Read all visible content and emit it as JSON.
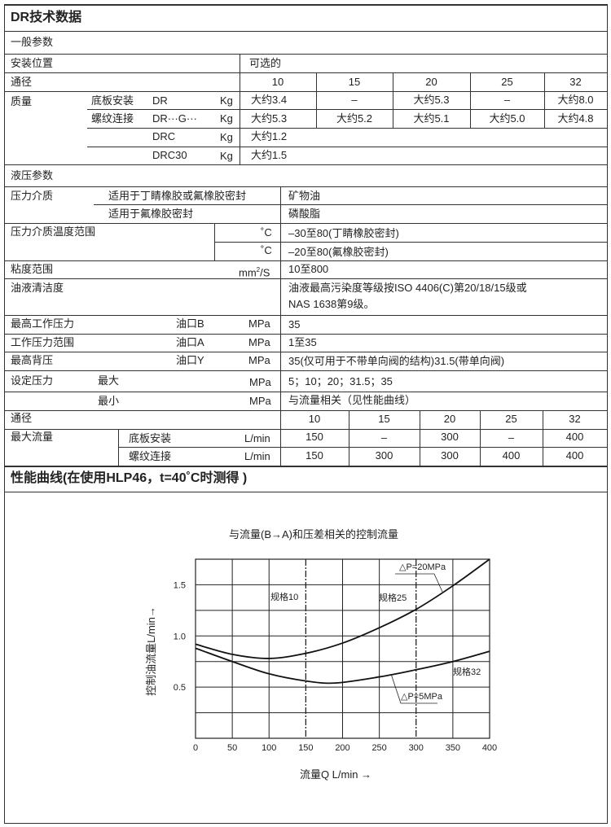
{
  "title": "DR技术数据",
  "general": {
    "section": "一般参数",
    "mounting_label": "安装位置",
    "mounting_value": "可选的",
    "size_label": "通径",
    "sizes": [
      "10",
      "15",
      "20",
      "25",
      "32"
    ],
    "mass_label": "质量",
    "mass_rows": [
      {
        "type": "底板安装",
        "model": "DR",
        "unit": "Kg",
        "values": [
          "大约3.4",
          "–",
          "大约5.3",
          "–",
          "大约8.0"
        ]
      },
      {
        "type": "螺纹连接",
        "model": "DR···G···",
        "unit": "Kg",
        "values": [
          "大约5.3",
          "大约5.2",
          "大约5.1",
          "大约5.0",
          "大约4.8"
        ]
      },
      {
        "type": "",
        "model": "DRC",
        "unit": "Kg",
        "values": [
          "大约1.2"
        ]
      },
      {
        "type": "",
        "model": "DRC30",
        "unit": "Kg",
        "values": [
          "大约1.5"
        ]
      }
    ]
  },
  "hydraulic": {
    "section": "液压参数",
    "medium_label": "压力介质",
    "medium_rows": [
      {
        "seal": "适用于丁睛橡胶或氟橡胶密封",
        "value": "矿物油"
      },
      {
        "seal": "适用于氟橡胶密封",
        "value": "磷酸脂"
      }
    ],
    "temp_label": "压力介质温度范围",
    "temp_unit": "˚C",
    "temp_rows": [
      "–30至80(丁睛橡胶密封)",
      "–20至80(氟橡胶密封)"
    ],
    "viscosity_label": "粘度范围",
    "viscosity_unit": "mm",
    "viscosity_unit_sup": "2",
    "viscosity_unit_tail": "/S",
    "viscosity_value": "10至800",
    "cleanliness_label": "油液清洁度",
    "cleanliness_value_1": "油液最高污染度等级按ISO 4406(C)第20/18/15级或",
    "cleanliness_value_2": "NAS 1638第9级。",
    "pressure_rows": [
      {
        "label": "最高工作压力",
        "port": "油口B",
        "unit": "MPa",
        "value": "35"
      },
      {
        "label": "工作压力范围",
        "port": "油口A",
        "unit": "MPa",
        "value": "1至35"
      },
      {
        "label": "最高背压",
        "port": "油口Y",
        "unit": "MPa",
        "value": "35(仅可用于不带单向阀的结构)31.5(带单向阀)"
      }
    ],
    "set_label": "设定压力",
    "set_rows": [
      {
        "sub": "最大",
        "unit": "MPa",
        "value": "5；10；20；31.5；35"
      },
      {
        "sub": "最小",
        "unit": "MPa",
        "value": "与流量相关（见性能曲线）"
      }
    ],
    "size_label": "通径",
    "sizes": [
      "10",
      "15",
      "20",
      "25",
      "32"
    ],
    "flow_label": "最大流量",
    "flow_rows": [
      {
        "type": "底板安装",
        "unit": "L/min",
        "values": [
          "150",
          "–",
          "300",
          "–",
          "400"
        ]
      },
      {
        "type": "螺纹连接",
        "unit": "L/min",
        "values": [
          "150",
          "300",
          "300",
          "400",
          "400"
        ]
      }
    ]
  },
  "curves_section": "性能曲线(在使用HLP46，t=40˚C时测得 )",
  "chart_data": {
    "type": "line",
    "title": "与流量(B→A)和压差相关的控制流量",
    "xlabel": "流量Q  L/min →",
    "ylabel": "控制油流量L/min→",
    "xlim": [
      0,
      400
    ],
    "ylim": [
      0,
      1.75
    ],
    "xticks": [
      "0",
      "50",
      "100",
      "150",
      "200",
      "250",
      "300",
      "350",
      "400"
    ],
    "yticks": [
      "0.5",
      "1.0",
      "1.5"
    ],
    "grid": true,
    "series": [
      {
        "name": "△P=20MPa",
        "x": [
          0,
          50,
          100,
          150,
          200,
          250,
          300,
          350,
          400
        ],
        "y": [
          0.92,
          0.82,
          0.78,
          0.83,
          0.93,
          1.08,
          1.26,
          1.49,
          1.75
        ]
      },
      {
        "name": "△P=5MPa",
        "x": [
          0,
          50,
          100,
          150,
          190,
          250,
          300,
          350,
          400
        ],
        "y": [
          0.88,
          0.75,
          0.63,
          0.56,
          0.54,
          0.6,
          0.67,
          0.75,
          0.85
        ]
      }
    ],
    "markers": [
      {
        "label": "规格10",
        "x": 150
      },
      {
        "label": "规格25",
        "x": 300
      },
      {
        "label": "规格32",
        "x": 400
      }
    ],
    "line_color": "#111111"
  }
}
